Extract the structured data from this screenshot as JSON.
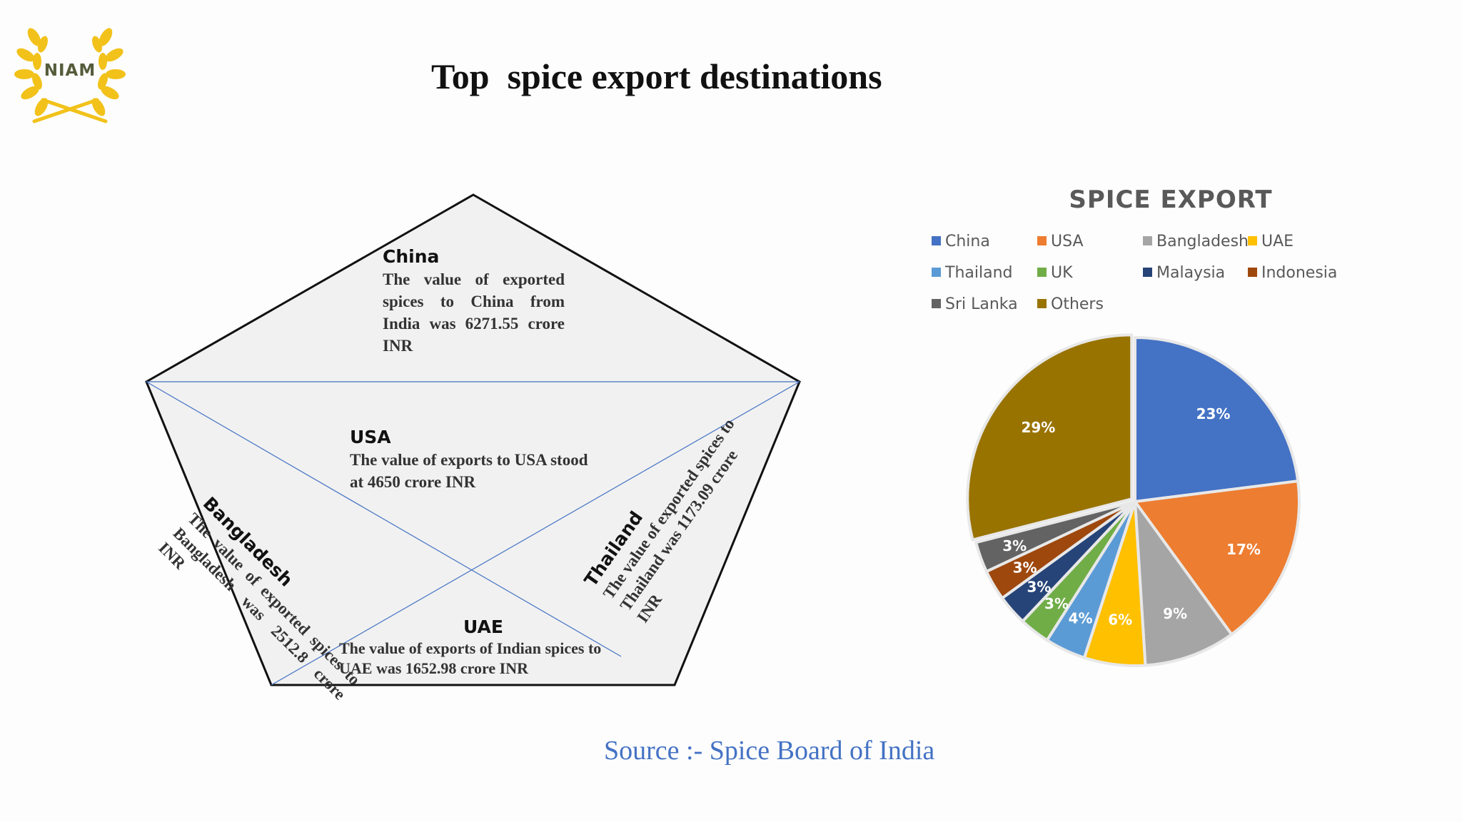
{
  "logo": {
    "text": "NIAM",
    "icon": "laurel-wreath-icon"
  },
  "title": "Top  spice export destinations",
  "pentagon": {
    "china": {
      "heading": "China",
      "body": "The value of exported spices to China from India was 6271.55 crore INR"
    },
    "usa": {
      "heading": "USA",
      "body_lines": [
        "The value of exports to USA stood",
        "at 4650 crore INR"
      ]
    },
    "bangladesh": {
      "heading": "Bangladesh",
      "body": "The value of exported spices to Bangladesh was 2512.8 crore INR"
    },
    "thailand": {
      "heading": "Thailand",
      "body": "The value of exported spices to Thailand was 1173.09 crore INR"
    },
    "uae": {
      "heading": "UAE",
      "body_lines": [
        "The value of exports of Indian spices to",
        "UAE was 1652.98 crore INR"
      ]
    }
  },
  "chart_data": {
    "type": "pie",
    "title": "SPICE EXPORT",
    "legend_position": "top",
    "categories": [
      "China",
      "USA",
      "Bangladesh",
      "UAE",
      "Thailand",
      "UK",
      "Malaysia",
      "Indonesia",
      "Sri Lanka",
      "Others"
    ],
    "values": [
      23,
      17,
      9,
      6,
      4,
      3,
      3,
      3,
      3,
      29
    ],
    "labels": [
      "23%",
      "17%",
      "9%",
      "6%",
      "4%",
      "3%",
      "3%",
      "3%",
      "3%",
      "29%"
    ],
    "colors": [
      "#4472c4",
      "#ed7d31",
      "#a5a5a5",
      "#ffc000",
      "#5b9bd5",
      "#70ad47",
      "#264478",
      "#9e480e",
      "#636363",
      "#997300"
    ]
  },
  "source": "Source :- Spice Board of India"
}
